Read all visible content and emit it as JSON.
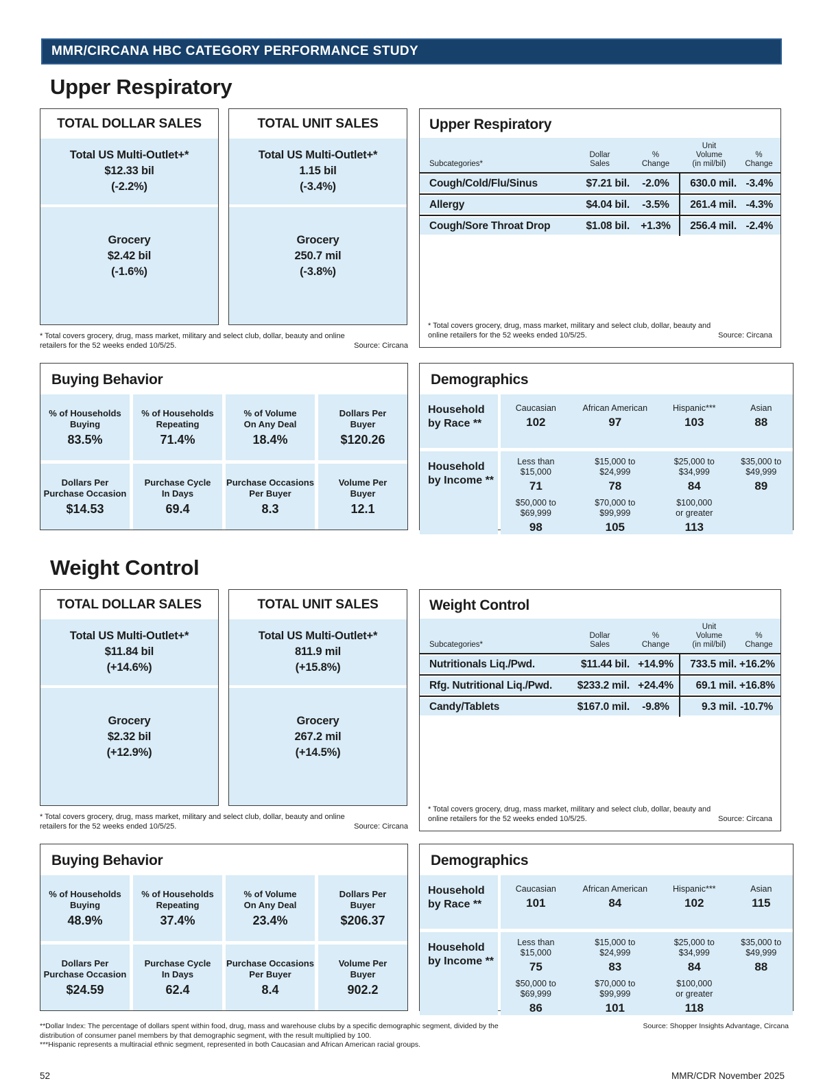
{
  "banner": "MMR/CIRCANA HBC CATEGORY PERFORMANCE STUDY",
  "footer": {
    "page_number": "52",
    "issue": "MMR/CDR November 2025"
  },
  "bottom_notes": {
    "dollar_index": "**Dollar Index: The percentage of dollars spent within food, drug, mass and warehouse clubs by a specific demographic segment, divided by the distribution of consumer panel members by that demographic segment, with the result multiplied by 100.",
    "hispanic": "***Hispanic represents a multiracial ethnic segment, represented in both Caucasian and African American racial groups.",
    "source": "Source: Shopper Insights Advantage, Circana"
  },
  "colors": {
    "navy": "#17406a",
    "light_blue": "#d9ecf7",
    "ink": "#1c1c1c"
  },
  "sections": [
    {
      "title": "Upper Respiratory",
      "dollar_box": {
        "title": "TOTAL DOLLAR SALES",
        "total_label": "Total US Multi-Outlet+*",
        "total_value": "$12.33 bil",
        "total_change": "(-2.2%)",
        "grocery_label": "Grocery",
        "grocery_value": "$2.42 bil",
        "grocery_change": "(-1.6%)"
      },
      "unit_box": {
        "title": "TOTAL UNIT SALES",
        "total_label": "Total US Multi-Outlet+*",
        "total_value": "1.15 bil",
        "total_change": "(-3.4%)",
        "grocery_label": "Grocery",
        "grocery_value": "250.7 mil",
        "grocery_change": "(-3.8%)"
      },
      "sales_footnote": "* Total covers grocery, drug, mass market, military and select club, dollar, beauty and online retailers for the 52 weeks ended 10/5/25.",
      "sales_source": "Source: Circana",
      "table": {
        "title": "Upper Respiratory",
        "col_headers": {
          "subcat": "Subcategories*",
          "dollar": "Dollar\nSales",
          "pct1": "%\nChange",
          "unit": "Unit\nVolume\n(in mil/bil)",
          "pct2": "%\nChange"
        },
        "rows": [
          {
            "name": "Cough/Cold/Flu/Sinus",
            "dollar": "$7.21 bil.",
            "pct1": "-2.0%",
            "unit": "630.0 mil.",
            "pct2": "-3.4%"
          },
          {
            "name": "Allergy",
            "dollar": "$4.04 bil.",
            "pct1": "-3.5%",
            "unit": "261.4 mil.",
            "pct2": "-4.3%"
          },
          {
            "name": "Cough/Sore Throat Drop",
            "dollar": "$1.08 bil.",
            "pct1": "+1.3%",
            "unit": "256.4 mil.",
            "pct2": "-2.4%"
          }
        ],
        "footnote": "* Total covers grocery, drug, mass market, military and select club, dollar, beauty and online retailers for the 52 weeks ended 10/5/25.",
        "source": "Source: Circana"
      },
      "buying": {
        "title": "Buying Behavior",
        "cells": [
          {
            "label": "% of Households\nBuying",
            "value": "83.5%"
          },
          {
            "label": "% of Households\nRepeating",
            "value": "71.4%"
          },
          {
            "label": "% of Volume\nOn Any Deal",
            "value": "18.4%"
          },
          {
            "label": "Dollars Per\nBuyer",
            "value": "$120.26"
          },
          {
            "label": "Dollars Per\nPurchase Occasion",
            "value": "$14.53"
          },
          {
            "label": "Purchase Cycle\nIn Days",
            "value": "69.4"
          },
          {
            "label": "Purchase Occasions\nPer Buyer",
            "value": "8.3"
          },
          {
            "label": "Volume Per\nBuyer",
            "value": "12.1"
          }
        ]
      },
      "demographics": {
        "title": "Demographics",
        "race_label": "Household\nby Race **",
        "race": [
          {
            "label": "Caucasian",
            "value": "102"
          },
          {
            "label": "African American",
            "value": "97"
          },
          {
            "label": "Hispanic***",
            "value": "103"
          },
          {
            "label": "Asian",
            "value": "88"
          }
        ],
        "income_label": "Household\nby Income **",
        "income_row1": [
          {
            "label": "Less than\n$15,000",
            "value": "71"
          },
          {
            "label": "$15,000 to\n$24,999",
            "value": "78"
          },
          {
            "label": "$25,000 to\n$34,999",
            "value": "84"
          },
          {
            "label": "$35,000 to\n$49,999",
            "value": "89"
          }
        ],
        "income_row2": [
          {
            "label": "$50,000 to\n$69,999",
            "value": "98"
          },
          {
            "label": "$70,000 to\n$99,999",
            "value": "105"
          },
          {
            "label": "$100,000\nor greater",
            "value": "113"
          }
        ]
      }
    },
    {
      "title": "Weight Control",
      "dollar_box": {
        "title": "TOTAL DOLLAR SALES",
        "total_label": "Total US Multi-Outlet+*",
        "total_value": "$11.84 bil",
        "total_change": "(+14.6%)",
        "grocery_label": "Grocery",
        "grocery_value": "$2.32 bil",
        "grocery_change": "(+12.9%)"
      },
      "unit_box": {
        "title": "TOTAL UNIT SALES",
        "total_label": "Total US Multi-Outlet+*",
        "total_value": "811.9 mil",
        "total_change": "(+15.8%)",
        "grocery_label": "Grocery",
        "grocery_value": "267.2 mil",
        "grocery_change": "(+14.5%)"
      },
      "sales_footnote": "* Total covers grocery, drug, mass market, military and select club, dollar, beauty and online retailers for the 52 weeks ended 10/5/25.",
      "sales_source": "Source: Circana",
      "table": {
        "title": "Weight Control",
        "col_headers": {
          "subcat": "Subcategories*",
          "dollar": "Dollar\nSales",
          "pct1": "%\nChange",
          "unit": "Unit\nVolume\n(in mil/bil)",
          "pct2": "%\nChange"
        },
        "rows": [
          {
            "name": "Nutritionals Liq./Pwd.",
            "dollar": "$11.44 bil.",
            "pct1": "+14.9%",
            "unit": "733.5 mil.",
            "pct2": "+16.2%"
          },
          {
            "name": "Rfg. Nutritional Liq./Pwd.",
            "dollar": "$233.2 mil.",
            "pct1": "+24.4%",
            "unit": "69.1 mil.",
            "pct2": "+16.8%"
          },
          {
            "name": "Candy/Tablets",
            "dollar": "$167.0 mil.",
            "pct1": "-9.8%",
            "unit": "9.3 mil.",
            "pct2": "-10.7%"
          }
        ],
        "footnote": "* Total covers grocery, drug, mass market, military and select club, dollar, beauty and online retailers for the 52 weeks ended 10/5/25.",
        "source": "Source: Circana"
      },
      "buying": {
        "title": "Buying Behavior",
        "cells": [
          {
            "label": "% of Households\nBuying",
            "value": "48.9%"
          },
          {
            "label": "% of Households\nRepeating",
            "value": "37.4%"
          },
          {
            "label": "% of Volume\nOn Any Deal",
            "value": "23.4%"
          },
          {
            "label": "Dollars Per\nBuyer",
            "value": "$206.37"
          },
          {
            "label": "Dollars Per\nPurchase Occasion",
            "value": "$24.59"
          },
          {
            "label": "Purchase Cycle\nIn Days",
            "value": "62.4"
          },
          {
            "label": "Purchase Occasions\nPer Buyer",
            "value": "8.4"
          },
          {
            "label": "Volume Per\nBuyer",
            "value": "902.2"
          }
        ]
      },
      "demographics": {
        "title": "Demographics",
        "race_label": "Household\nby Race **",
        "race": [
          {
            "label": "Caucasian",
            "value": "101"
          },
          {
            "label": "African American",
            "value": "84"
          },
          {
            "label": "Hispanic***",
            "value": "102"
          },
          {
            "label": "Asian",
            "value": "115"
          }
        ],
        "income_label": "Household\nby Income **",
        "income_row1": [
          {
            "label": "Less than\n$15,000",
            "value": "75"
          },
          {
            "label": "$15,000 to\n$24,999",
            "value": "83"
          },
          {
            "label": "$25,000 to\n$34,999",
            "value": "84"
          },
          {
            "label": "$35,000 to\n$49,999",
            "value": "88"
          }
        ],
        "income_row2": [
          {
            "label": "$50,000 to\n$69,999",
            "value": "86"
          },
          {
            "label": "$70,000 to\n$99,999",
            "value": "101"
          },
          {
            "label": "$100,000\nor greater",
            "value": "118"
          }
        ]
      }
    }
  ]
}
